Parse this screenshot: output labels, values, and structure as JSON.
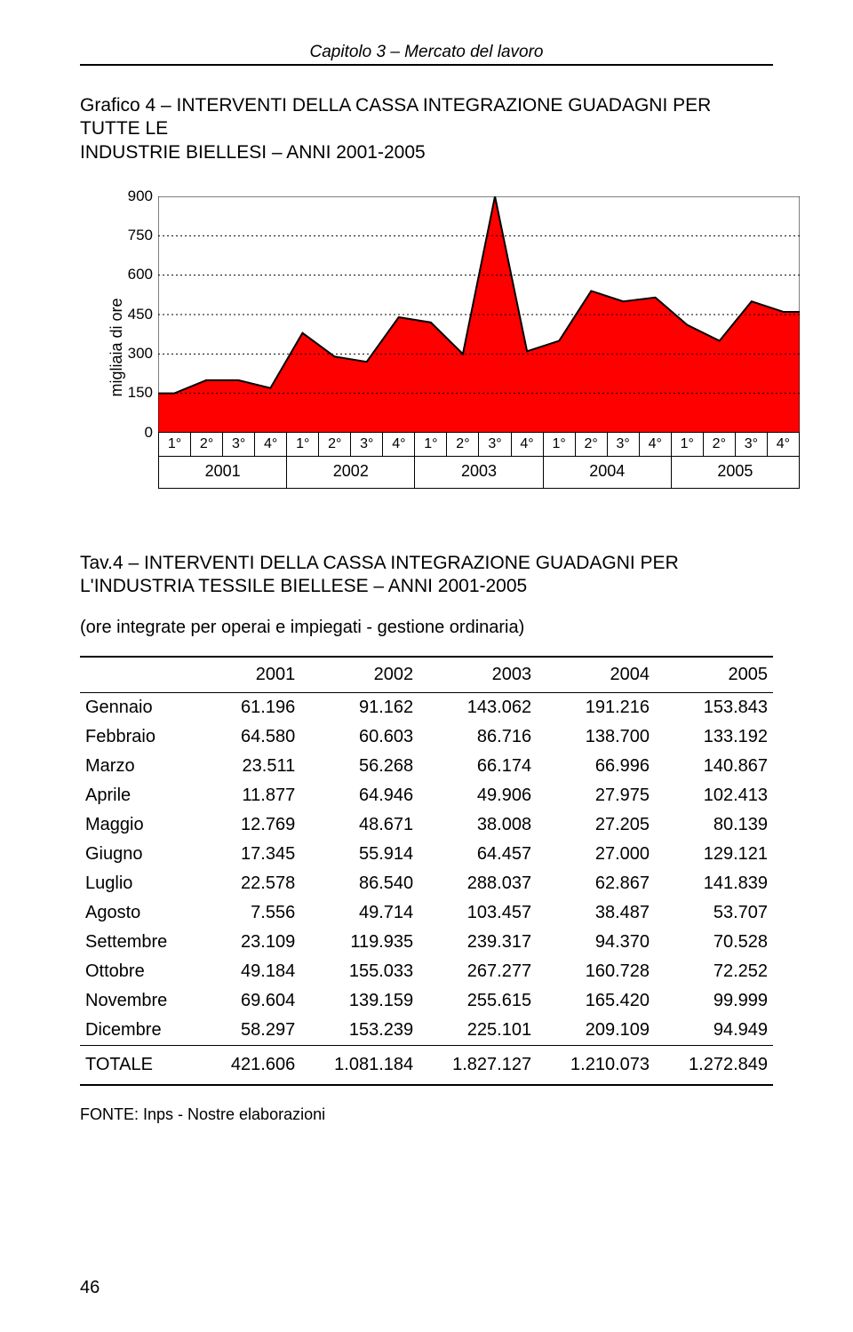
{
  "header": {
    "chapter": "Capitolo 3 – Mercato del lavoro",
    "font_italic": true
  },
  "figure": {
    "title_lines": [
      "Grafico 4 – INTERVENTI DELLA CASSA INTEGRAZIONE GUADAGNI PER TUTTE LE",
      "INDUSTRIE BIELLESI – ANNI 2001-2005"
    ],
    "chart": {
      "type": "area",
      "ylabel": "migliaia di ore",
      "ylim": [
        0,
        900
      ],
      "ytick_step": 150,
      "yticks": [
        0,
        150,
        300,
        450,
        600,
        750,
        900
      ],
      "x_categories": [
        "1°",
        "2°",
        "3°",
        "4°",
        "1°",
        "2°",
        "3°",
        "4°",
        "1°",
        "2°",
        "3°",
        "4°",
        "1°",
        "2°",
        "3°",
        "4°",
        "1°",
        "2°",
        "3°",
        "4°"
      ],
      "x_groups": [
        "2001",
        "2002",
        "2003",
        "2004",
        "2005"
      ],
      "values": [
        150,
        200,
        200,
        170,
        380,
        290,
        270,
        440,
        420,
        300,
        900,
        310,
        350,
        540,
        500,
        515,
        410,
        350,
        500,
        460
      ],
      "fill_color": "#ff0000",
      "stroke_color": "#000000",
      "stroke_width": 2,
      "background_color": "#ffffff",
      "grid_dash": "2 3",
      "tick_fontsize": 17,
      "label_fontsize": 18
    }
  },
  "tav": {
    "title_lines": [
      "Tav.4 – INTERVENTI DELLA CASSA INTEGRAZIONE GUADAGNI PER",
      "L'INDUSTRIA TESSILE BIELLESE – ANNI 2001-2005"
    ],
    "subtitle": "(ore integrate per operai e impiegati - gestione ordinaria)",
    "columns": [
      "2001",
      "2002",
      "2003",
      "2004",
      "2005"
    ],
    "rows": [
      {
        "label": "Gennaio",
        "cells": [
          "61.196",
          "91.162",
          "143.062",
          "191.216",
          "153.843"
        ]
      },
      {
        "label": "Febbraio",
        "cells": [
          "64.580",
          "60.603",
          "86.716",
          "138.700",
          "133.192"
        ]
      },
      {
        "label": "Marzo",
        "cells": [
          "23.511",
          "56.268",
          "66.174",
          "66.996",
          "140.867"
        ]
      },
      {
        "label": "Aprile",
        "cells": [
          "11.877",
          "64.946",
          "49.906",
          "27.975",
          "102.413"
        ]
      },
      {
        "label": "Maggio",
        "cells": [
          "12.769",
          "48.671",
          "38.008",
          "27.205",
          "80.139"
        ]
      },
      {
        "label": "Giugno",
        "cells": [
          "17.345",
          "55.914",
          "64.457",
          "27.000",
          "129.121"
        ]
      },
      {
        "label": "Luglio",
        "cells": [
          "22.578",
          "86.540",
          "288.037",
          "62.867",
          "141.839"
        ]
      },
      {
        "label": "Agosto",
        "cells": [
          "7.556",
          "49.714",
          "103.457",
          "38.487",
          "53.707"
        ]
      },
      {
        "label": "Settembre",
        "cells": [
          "23.109",
          "119.935",
          "239.317",
          "94.370",
          "70.528"
        ]
      },
      {
        "label": "Ottobre",
        "cells": [
          "49.184",
          "155.033",
          "267.277",
          "160.728",
          "72.252"
        ]
      },
      {
        "label": "Novembre",
        "cells": [
          "69.604",
          "139.159",
          "255.615",
          "165.420",
          "99.999"
        ]
      },
      {
        "label": "Dicembre",
        "cells": [
          "58.297",
          "153.239",
          "225.101",
          "209.109",
          "94.949"
        ]
      }
    ],
    "total": {
      "label": "TOTALE",
      "cells": [
        "421.606",
        "1.081.184",
        "1.827.127",
        "1.210.073",
        "1.272.849"
      ]
    }
  },
  "source": "FONTE: Inps - Nostre elaborazioni",
  "page_number": "46"
}
